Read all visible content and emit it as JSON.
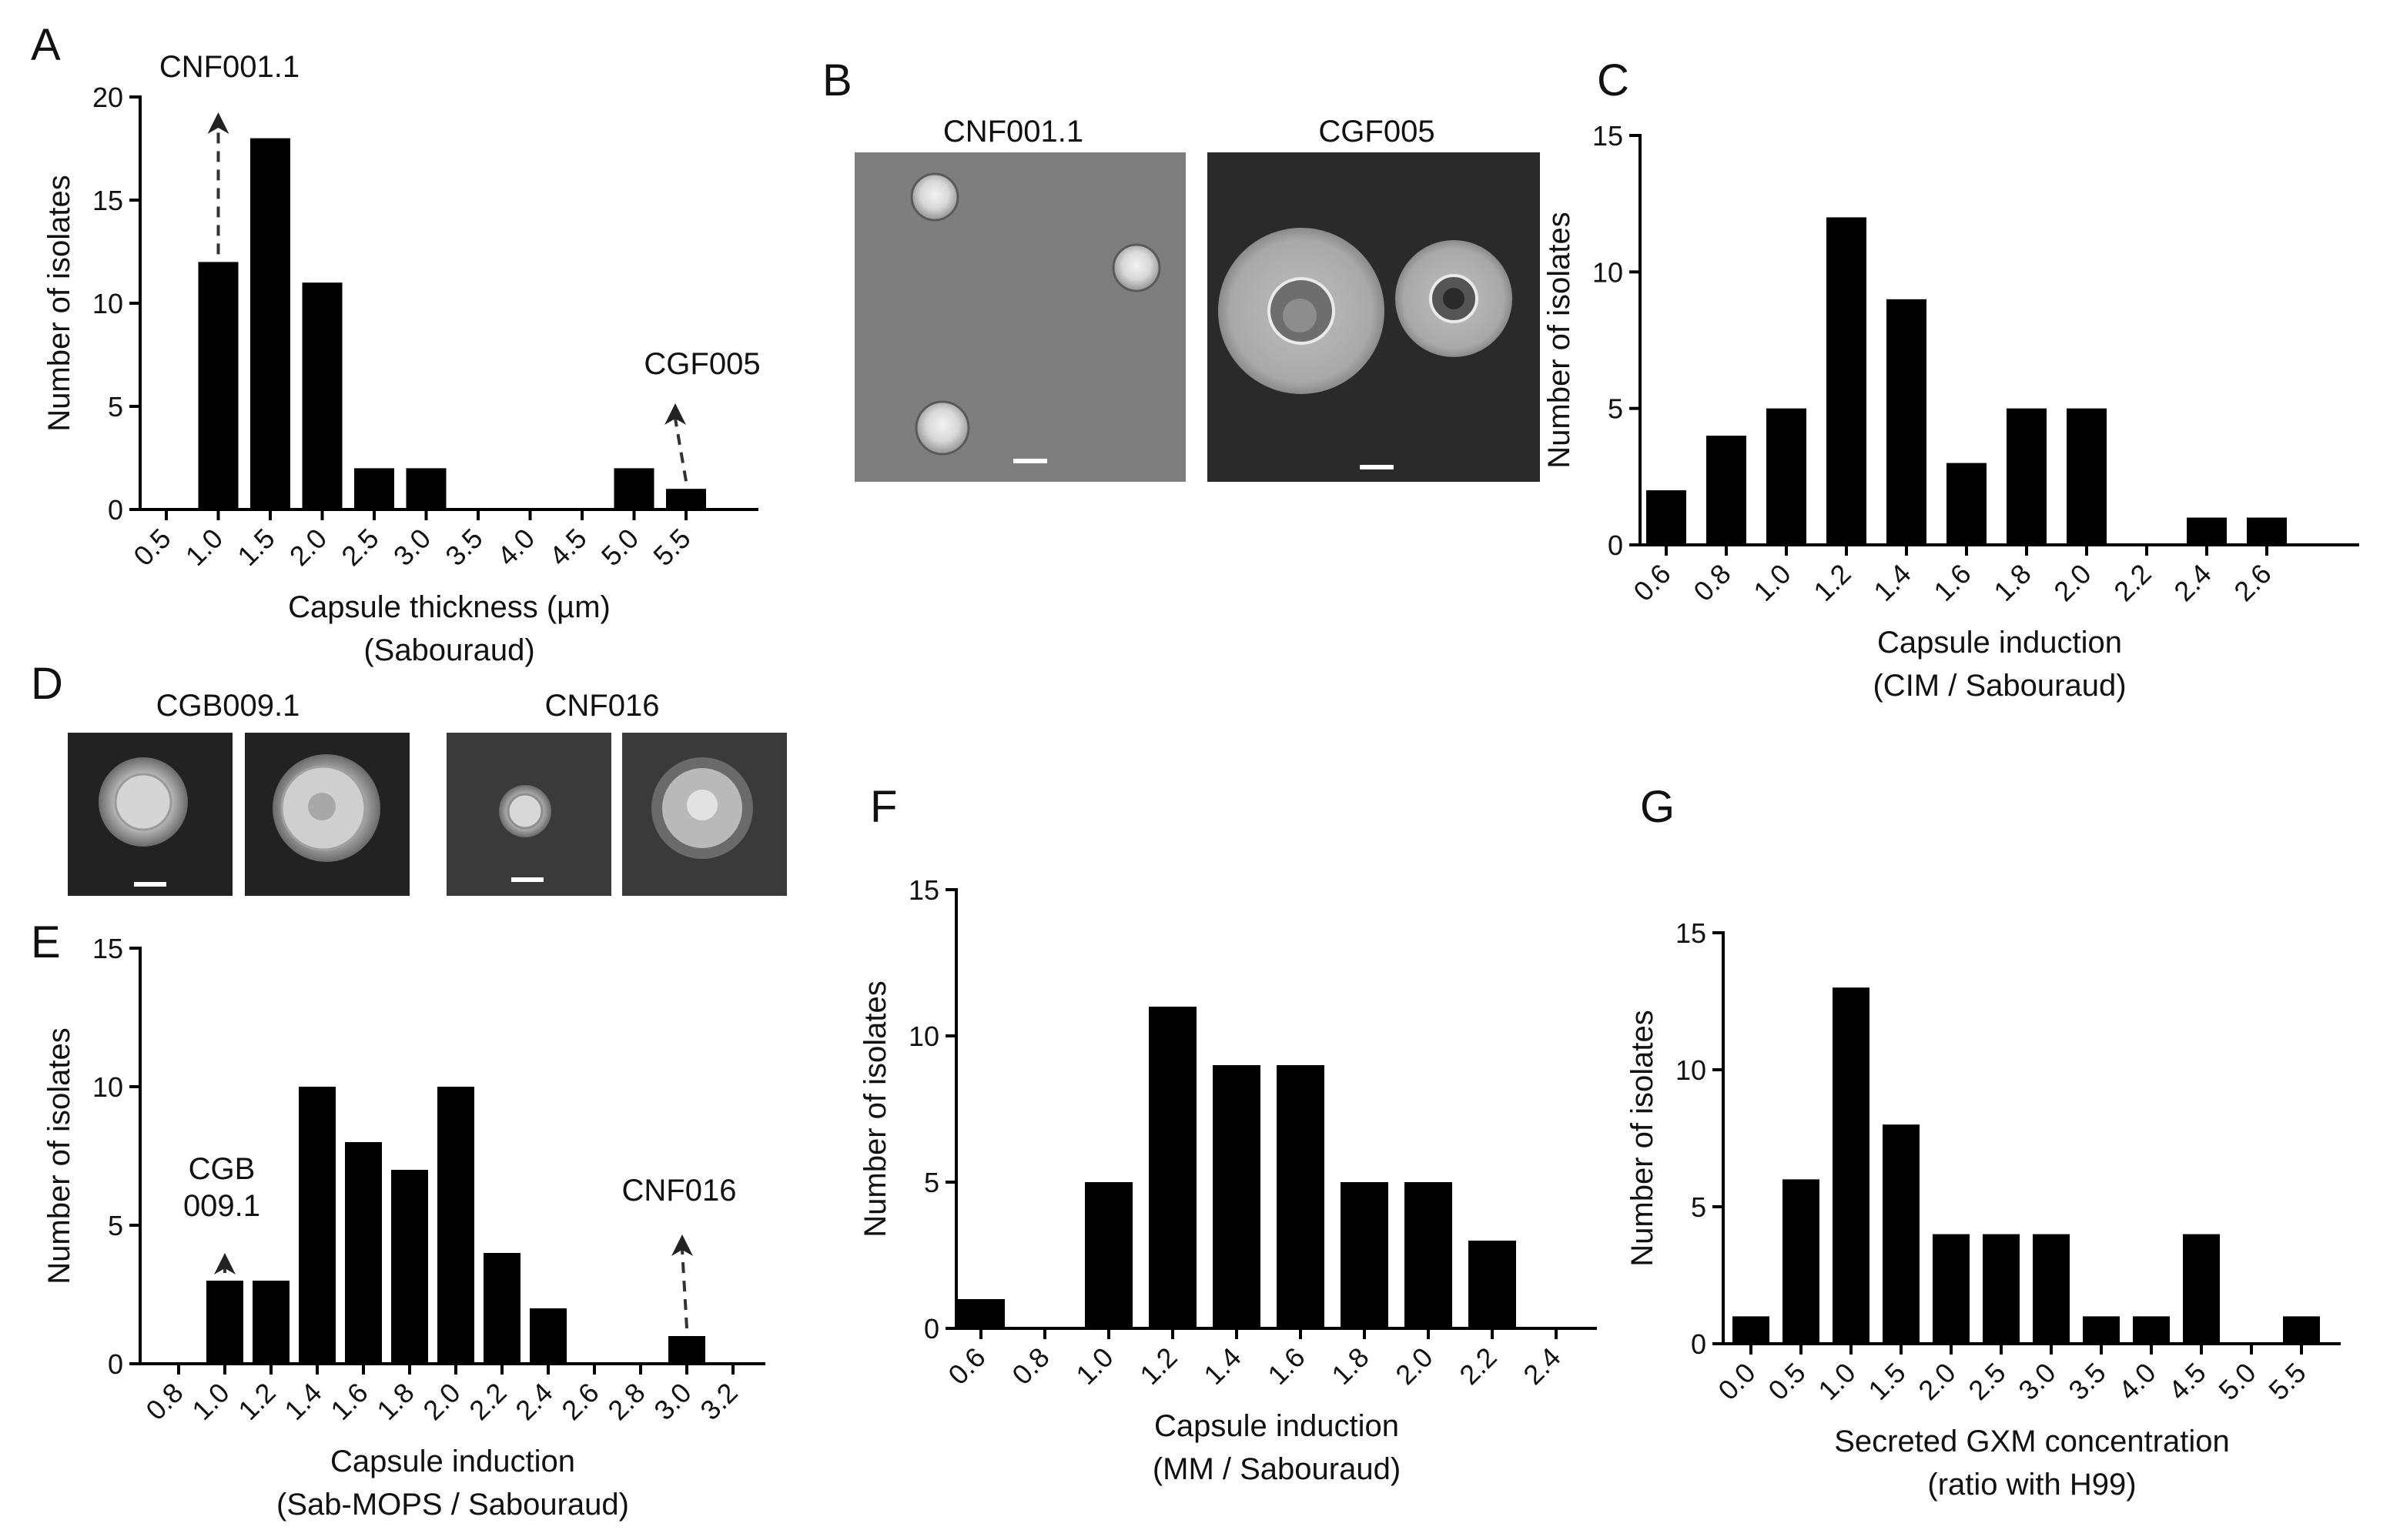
{
  "panels": {
    "A": {
      "letter": "A"
    },
    "B": {
      "letter": "B",
      "images": [
        {
          "label": "CNF001.1"
        },
        {
          "label": "CGF005"
        }
      ]
    },
    "C": {
      "letter": "C"
    },
    "D": {
      "letter": "D",
      "images": [
        {
          "label": "CGB009.1"
        },
        {
          "label": "CNF016"
        }
      ]
    },
    "E": {
      "letter": "E"
    },
    "F": {
      "letter": "F"
    },
    "G": {
      "letter": "G"
    }
  },
  "colors": {
    "bar": "#000000",
    "axis": "#000000",
    "micro_light_bg": "#7e7e7e",
    "micro_dark_bg": "#2a2a2a"
  },
  "chart_data": [
    {
      "id": "A",
      "type": "bar",
      "categories": [
        "0.5",
        "1.0",
        "1.5",
        "2.0",
        "2.5",
        "3.0",
        "3.5",
        "4.0",
        "4.5",
        "5.0",
        "5.5"
      ],
      "values": [
        0,
        12,
        18,
        11,
        2,
        2,
        0,
        0,
        0,
        2,
        1
      ],
      "ylim": [
        0,
        20
      ],
      "yticks": [
        "0",
        "5",
        "10",
        "15",
        "20"
      ],
      "ylabel": "Number of isolates",
      "xlabel": [
        "Capsule thickness (µm)",
        "(Sabouraud)"
      ],
      "annotations": [
        {
          "text": [
            "CNF001.1"
          ],
          "category": "1.0"
        },
        {
          "text": [
            "CGF005"
          ],
          "category": "5.5"
        }
      ],
      "grid": false
    },
    {
      "id": "C",
      "type": "bar",
      "categories": [
        "0.6",
        "0.8",
        "1.0",
        "1.2",
        "1.4",
        "1.6",
        "1.8",
        "2.0",
        "2.2",
        "2.4",
        "2.6"
      ],
      "values": [
        2,
        4,
        5,
        12,
        9,
        3,
        5,
        5,
        0,
        1,
        1
      ],
      "ylim": [
        0,
        15
      ],
      "yticks": [
        "0",
        "5",
        "10",
        "15"
      ],
      "ylabel": "Number of isolates",
      "xlabel": [
        "Capsule induction",
        "(CIM / Sabouraud)"
      ],
      "grid": false
    },
    {
      "id": "E",
      "type": "bar",
      "categories": [
        "0.8",
        "1.0",
        "1.2",
        "1.4",
        "1.6",
        "1.8",
        "2.0",
        "2.2",
        "2.4",
        "2.6",
        "2.8",
        "3.0",
        "3.2"
      ],
      "values": [
        0,
        3,
        3,
        10,
        8,
        7,
        10,
        4,
        2,
        0,
        0,
        1,
        0
      ],
      "ylim": [
        0,
        15
      ],
      "yticks": [
        "0",
        "5",
        "10",
        "15"
      ],
      "ylabel": "Number of isolates",
      "xlabel": [
        "Capsule induction",
        "(Sab-MOPS / Sabouraud)"
      ],
      "annotations": [
        {
          "text": [
            "CGB",
            "009.1"
          ],
          "category": "1.0"
        },
        {
          "text": [
            "CNF016"
          ],
          "category": "3.0"
        }
      ],
      "grid": false
    },
    {
      "id": "F",
      "type": "bar",
      "categories": [
        "0.6",
        "0.8",
        "1.0",
        "1.2",
        "1.4",
        "1.6",
        "1.8",
        "2.0",
        "2.2",
        "2.4"
      ],
      "values": [
        1,
        0,
        5,
        11,
        9,
        9,
        5,
        5,
        3,
        0
      ],
      "ylim": [
        0,
        15
      ],
      "yticks": [
        "0",
        "5",
        "10",
        "15"
      ],
      "ylabel": "Number of isolates",
      "xlabel": [
        "Capsule induction",
        "(MM / Sabouraud)"
      ],
      "grid": false
    },
    {
      "id": "G",
      "type": "bar",
      "categories": [
        "0.0",
        "0.5",
        "1.0",
        "1.5",
        "2.0",
        "2.5",
        "3.0",
        "3.5",
        "4.0",
        "4.5",
        "5.0",
        "5.5"
      ],
      "values": [
        1,
        6,
        13,
        8,
        4,
        4,
        4,
        1,
        1,
        4,
        0,
        1
      ],
      "ylim": [
        0,
        15
      ],
      "yticks": [
        "0",
        "5",
        "10",
        "15"
      ],
      "ylabel": "Number of isolates",
      "xlabel": [
        "Secreted GXM concentration",
        "(ratio with H99)"
      ],
      "grid": false
    }
  ]
}
